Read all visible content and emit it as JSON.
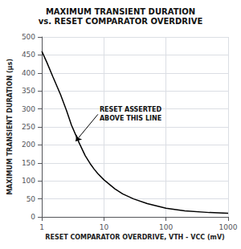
{
  "chart_data": {
    "type": "line",
    "title": "MAXIMUM TRANSIENT DURATION",
    "subtitle": "vs. RESET COMPARATOR OVERDRIVE",
    "x_label": "RESET COMPARATOR OVERDRIVE, VTH - VCC (mV)",
    "y_label": "MAXIMUM TRANSIENT DURATION (μs)",
    "x": [
      1.0,
      1.2,
      1.5,
      2.0,
      2.5,
      3.0,
      4.0,
      5.0,
      6.0,
      7.0,
      8.0,
      10.0,
      15.0,
      20.0,
      30.0,
      50.0,
      100.0,
      200.0,
      500.0,
      1000.0
    ],
    "values": [
      460,
      430,
      390,
      340,
      295,
      255,
      205,
      170,
      148,
      132,
      120,
      103,
      78,
      64,
      50,
      37,
      24,
      17,
      12,
      10
    ],
    "color": "#000000",
    "log": "x",
    "xlim": [
      1,
      1000
    ],
    "xticks": [
      1,
      10,
      100,
      1000
    ],
    "ylim": [
      0,
      500
    ],
    "yticks": [
      0,
      50,
      100,
      150,
      200,
      250,
      300,
      350,
      400,
      450,
      500
    ],
    "grid": true,
    "annotations": [
      {
        "text": "RESET ASSERTED\nABOVE THIS LINE",
        "xy": [
          3.5,
          210
        ],
        "xytext": [
          8,
          285
        ]
      }
    ]
  }
}
